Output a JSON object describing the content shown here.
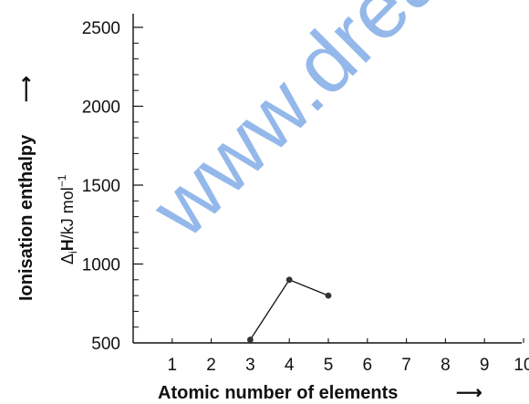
{
  "watermark": "www.dream",
  "chart_data": {
    "type": "line",
    "xlabel": "Atomic number of elements",
    "ylabel": "Ionisation enthalpy",
    "ylabel_unit_prefix": "Δ",
    "ylabel_unit_sub": "i",
    "ylabel_unit_H": "H",
    "ylabel_unit_rest": "/kJ mol",
    "ylabel_unit_sup": "−1",
    "x_arrow": "⟶",
    "y_arrow": "⟶",
    "categories": [
      "1",
      "2",
      "3",
      "4",
      "5",
      "6",
      "7",
      "8",
      "9",
      "10"
    ],
    "y_ticks": [
      "500",
      "1000",
      "1500",
      "2000",
      "2500"
    ],
    "ylim": [
      500,
      2500
    ],
    "xlim": [
      0,
      10.5
    ],
    "grid": false,
    "series": [
      {
        "x": [
          3,
          4,
          5
        ],
        "values": [
          520,
          900,
          800
        ]
      }
    ]
  }
}
